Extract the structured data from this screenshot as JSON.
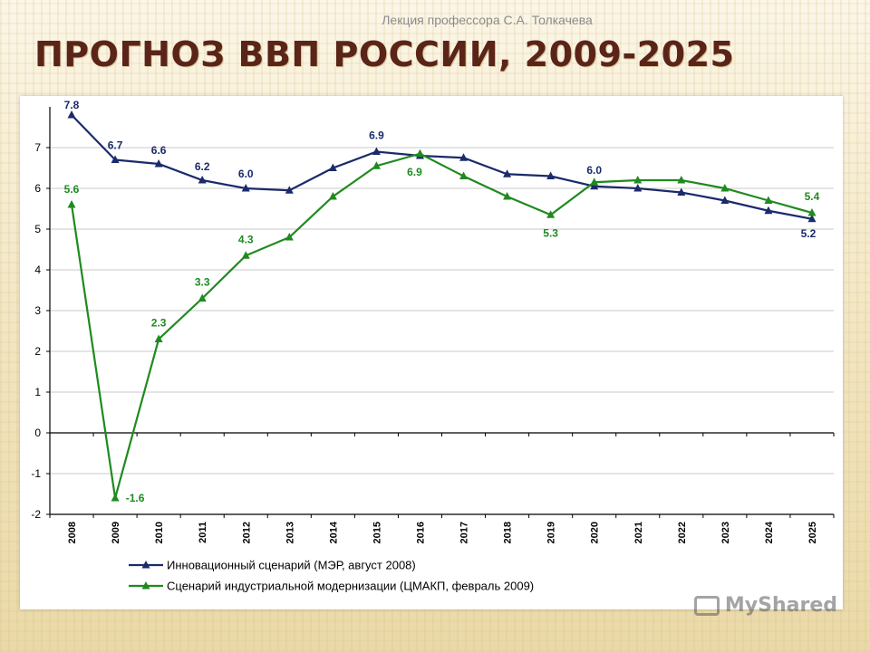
{
  "slide": {
    "subtitle": "Лекция профессора С.А. Толкачева",
    "title": "ПРОГНОЗ ВВП РОССИИ, 2009-2025",
    "watermark": "MyShared"
  },
  "colors": {
    "series1": "#1b2a6b",
    "series2": "#1f8a1f",
    "axis": "#000000",
    "grid": "#c8c8c8",
    "title": "#5a2418"
  },
  "chart_data": {
    "type": "line",
    "title": "",
    "xlabel": "",
    "ylabel": "",
    "ylim": [
      -2,
      8
    ],
    "yticks": [
      -2,
      -1,
      0,
      1,
      2,
      3,
      4,
      5,
      6,
      7
    ],
    "grid": true,
    "legend_position": "bottom",
    "categories": [
      "2008",
      "2009",
      "2010",
      "2011",
      "2012",
      "2013",
      "2014",
      "2015",
      "2016",
      "2017",
      "2018",
      "2019",
      "2020",
      "2021",
      "2022",
      "2023",
      "2024",
      "2025"
    ],
    "series": [
      {
        "name": "Инновационный сценарий (МЭР, август 2008)",
        "color": "#1b2a6b",
        "values": [
          7.8,
          6.7,
          6.6,
          6.2,
          6.0,
          5.95,
          6.5,
          6.9,
          6.8,
          6.75,
          6.35,
          6.3,
          6.05,
          6.0,
          5.9,
          5.7,
          5.45,
          5.25
        ],
        "labels": {
          "0": "7.8",
          "1": "6.7",
          "2": "6.6",
          "3": "6.2",
          "4": "6.0",
          "7": "6.9",
          "12": "6.0",
          "17": "5.2"
        }
      },
      {
        "name": "Сценарий индустриальной модернизации (ЦМАКП, февраль 2009)",
        "color": "#1f8a1f",
        "values": [
          5.6,
          -1.6,
          2.3,
          3.3,
          4.35,
          4.8,
          5.8,
          6.55,
          6.85,
          6.3,
          5.8,
          5.35,
          6.15,
          6.2,
          6.2,
          6.0,
          5.7,
          5.4
        ],
        "labels": {
          "0": "5.6",
          "1": "-1.6",
          "2": "2.3",
          "3": "3.3",
          "4": "4.3",
          "8": "6.9",
          "11": "5.3",
          "17": "5.4"
        }
      }
    ]
  }
}
